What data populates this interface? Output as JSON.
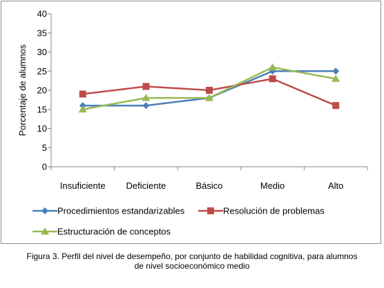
{
  "chart_data": {
    "type": "line",
    "title": "",
    "xlabel": "",
    "ylabel": "Porcentaje de alumnos",
    "ylim": [
      0,
      40
    ],
    "yticks": [
      0,
      5,
      10,
      15,
      20,
      25,
      30,
      35,
      40
    ],
    "categories": [
      "Insuficiente",
      "Deficiente",
      "Básico",
      "Medio",
      "Alto"
    ],
    "grid": false,
    "legend_position": "bottom",
    "series": [
      {
        "name": "Procedimientos estandarizables",
        "values": [
          16,
          16,
          18,
          25,
          25
        ],
        "color": "#4a7ebb",
        "marker": "diamond"
      },
      {
        "name": "Resolución de problemas",
        "values": [
          19,
          21,
          20,
          23,
          16
        ],
        "color": "#be4b48",
        "marker": "square"
      },
      {
        "name": "Estructuración de conceptos",
        "values": [
          15,
          18,
          18,
          26,
          23
        ],
        "color": "#98b954",
        "marker": "triangle"
      }
    ]
  },
  "caption": {
    "line1": "Figura 3. Perfil del nivel de desempeño, por conjunto de habilidad cognitiva, para alumnos",
    "line2": "de nivel socioeconómico medio"
  }
}
